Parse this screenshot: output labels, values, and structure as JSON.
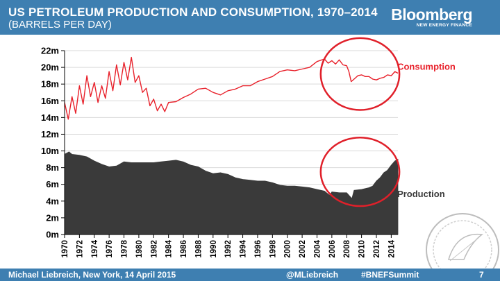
{
  "header": {
    "title": "US PETROLEUM PRODUCTION AND CONSUMPTION, 1970–2014",
    "subtitle": "(BARRELS PER DAY)",
    "brand": "Bloomberg",
    "brand_sub": "NEW ENERGY FINANCE"
  },
  "footer": {
    "author": "Michael Liebreich, New York, 14 April 2015",
    "handle": "@MLiebreich",
    "hashtag": "#BNEFSummit",
    "page": "7"
  },
  "colors": {
    "header": "#3e7fb1",
    "consumption": "#e8202a",
    "production": "#3a3a3a",
    "circle": "#e0202a",
    "grid": "#d9d9d9"
  },
  "chart_data": {
    "type": "line",
    "x_range": [
      1970,
      2014.9
    ],
    "ylim": [
      0,
      22000000
    ],
    "y_ticks": [
      0,
      2000000,
      4000000,
      6000000,
      8000000,
      10000000,
      12000000,
      14000000,
      16000000,
      18000000,
      20000000,
      22000000
    ],
    "y_tick_labels": [
      "0m",
      "2m",
      "4m",
      "6m",
      "8m",
      "10m",
      "12m",
      "14m",
      "16m",
      "18m",
      "20m",
      "22m"
    ],
    "x_ticks": [
      1970,
      1972,
      1974,
      1976,
      1978,
      1980,
      1982,
      1984,
      1986,
      1988,
      1990,
      1992,
      1994,
      1996,
      1998,
      2000,
      2002,
      2004,
      2006,
      2008,
      2010,
      2012,
      2014
    ],
    "x_tick_labels": [
      "1970",
      "1972",
      "1974",
      "1976",
      "1978",
      "1980",
      "1982",
      "1984",
      "1986",
      "1988",
      "1990",
      "1992",
      "1994",
      "1996",
      "1998",
      "2000",
      "2002",
      "2004",
      "2006",
      "2008",
      "2010",
      "2012",
      "2014"
    ],
    "grid": true,
    "series": [
      {
        "name": "Consumption",
        "style": "line",
        "x": [
          1970,
          1970.5,
          1971,
          1971.5,
          1972,
          1972.5,
          1973,
          1973.5,
          1974,
          1974.5,
          1975,
          1975.5,
          1976,
          1976.5,
          1977,
          1977.5,
          1978,
          1978.5,
          1979,
          1979.5,
          1980,
          1980.5,
          1981,
          1981.5,
          1982,
          1982.5,
          1983,
          1983.5,
          1984,
          1985,
          1986,
          1987,
          1988,
          1989,
          1990,
          1991,
          1992,
          1993,
          1994,
          1995,
          1996,
          1997,
          1998,
          1999,
          2000,
          2001,
          2002,
          2003,
          2004,
          2005,
          2005.5,
          2006,
          2006.5,
          2007,
          2007.5,
          2008,
          2008.3,
          2008.6,
          2009,
          2009.5,
          2010,
          2010.5,
          2011,
          2011.5,
          2012,
          2012.5,
          2013,
          2013.5,
          2014,
          2014.5,
          2014.9
        ],
        "values": [
          15800000,
          13800000,
          16500000,
          14500000,
          17800000,
          15600000,
          19000000,
          16500000,
          18200000,
          15800000,
          17800000,
          16300000,
          19500000,
          17200000,
          20300000,
          17900000,
          20600000,
          18500000,
          21200000,
          18200000,
          19000000,
          17000000,
          17500000,
          15400000,
          16200000,
          14800000,
          15600000,
          14700000,
          15800000,
          15900000,
          16400000,
          16800000,
          17400000,
          17500000,
          17000000,
          16700000,
          17200000,
          17400000,
          17800000,
          17800000,
          18300000,
          18600000,
          18900000,
          19500000,
          19700000,
          19600000,
          19800000,
          20000000,
          20700000,
          21000000,
          20500000,
          20800000,
          20400000,
          20900000,
          20300000,
          20200000,
          19500000,
          18300000,
          18600000,
          19000000,
          19100000,
          18900000,
          18900000,
          18600000,
          18500000,
          18700000,
          18800000,
          19100000,
          19000000,
          19500000,
          19300000
        ]
      },
      {
        "name": "Production",
        "style": "area",
        "x": [
          1970,
          1970.6,
          1971,
          1972,
          1973,
          1974,
          1975,
          1976,
          1977,
          1978,
          1979,
          1980,
          1981,
          1982,
          1983,
          1984,
          1985,
          1986,
          1987,
          1988,
          1989,
          1990,
          1991,
          1992,
          1993,
          1994,
          1995,
          1996,
          1997,
          1998,
          1999,
          2000,
          2001,
          2002,
          2003,
          2004,
          2005,
          2005.7,
          2006,
          2007,
          2008,
          2008.7,
          2008.9,
          2009,
          2010,
          2011,
          2011.5,
          2012,
          2012.5,
          2013,
          2013.5,
          2014,
          2014.5,
          2014.9
        ],
        "values": [
          9600000,
          9900000,
          9600000,
          9500000,
          9300000,
          8800000,
          8400000,
          8100000,
          8200000,
          8700000,
          8600000,
          8600000,
          8600000,
          8600000,
          8700000,
          8800000,
          8900000,
          8700000,
          8300000,
          8100000,
          7600000,
          7300000,
          7400000,
          7200000,
          6800000,
          6600000,
          6500000,
          6400000,
          6400000,
          6200000,
          5900000,
          5800000,
          5800000,
          5700000,
          5600000,
          5400000,
          5200000,
          4700000,
          5100000,
          5000000,
          5000000,
          4300000,
          5000000,
          5300000,
          5400000,
          5600000,
          5800000,
          6400000,
          6800000,
          7400000,
          7700000,
          8300000,
          8800000,
          9000000
        ]
      }
    ],
    "annotations": [
      {
        "text": "Consumption",
        "x": 2015,
        "y": 19700000,
        "color": "#e8202a"
      },
      {
        "text": "Production",
        "x": 2015,
        "y": 4500000,
        "color": "#3a3a3a"
      }
    ],
    "highlight_circles": [
      {
        "cx": 2009.8,
        "cy": 19200000,
        "rx_years": 5.3,
        "ry_value": 4300000
      },
      {
        "cx": 2009.8,
        "cy": 7500000,
        "rx_years": 5.3,
        "ry_value": 4100000
      }
    ]
  }
}
